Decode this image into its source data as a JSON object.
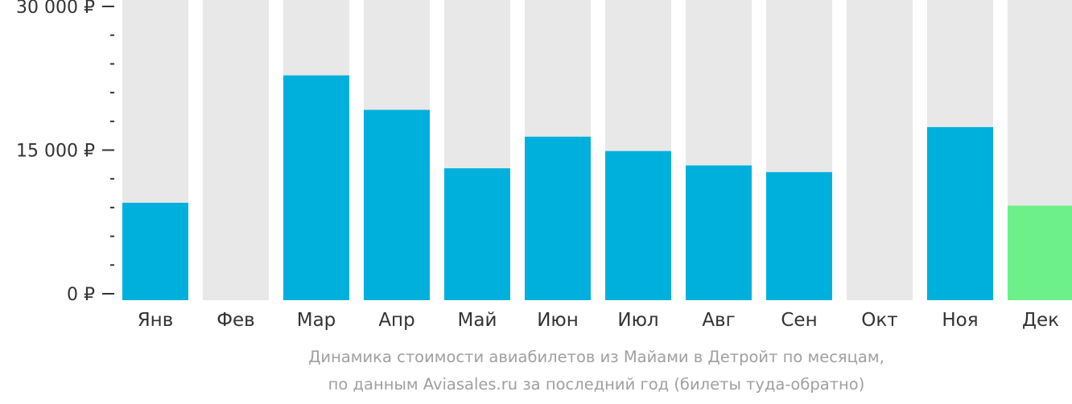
{
  "chart_data": {
    "type": "bar",
    "categories": [
      "Янв",
      "Фев",
      "Мар",
      "Апр",
      "Май",
      "Июн",
      "Июл",
      "Авг",
      "Сен",
      "Окт",
      "Ноя",
      "Дек"
    ],
    "values": [
      9500,
      null,
      22800,
      19200,
      13100,
      16400,
      14900,
      13400,
      12700,
      null,
      17400,
      9200
    ],
    "ylim": [
      0,
      30000
    ],
    "yticks": [
      {
        "value": 0,
        "label": "0 ₽"
      },
      {
        "value": 15000,
        "label": "15 000 ₽"
      },
      {
        "value": 30000,
        "label": "30 000 ₽"
      }
    ],
    "minor_tick_step": 3000,
    "highlight_index": 11,
    "colors": {
      "bar": "#00b0dc",
      "highlight": "#6df08a",
      "background_column": "#e8e8e8",
      "axis": "#333333"
    },
    "caption_line1": "Динамика стоимости авиабилетов из Майами в Детройт по месяцам,",
    "caption_line2": "по данным Aviasales.ru за последний год (билеты туда-обратно)"
  }
}
